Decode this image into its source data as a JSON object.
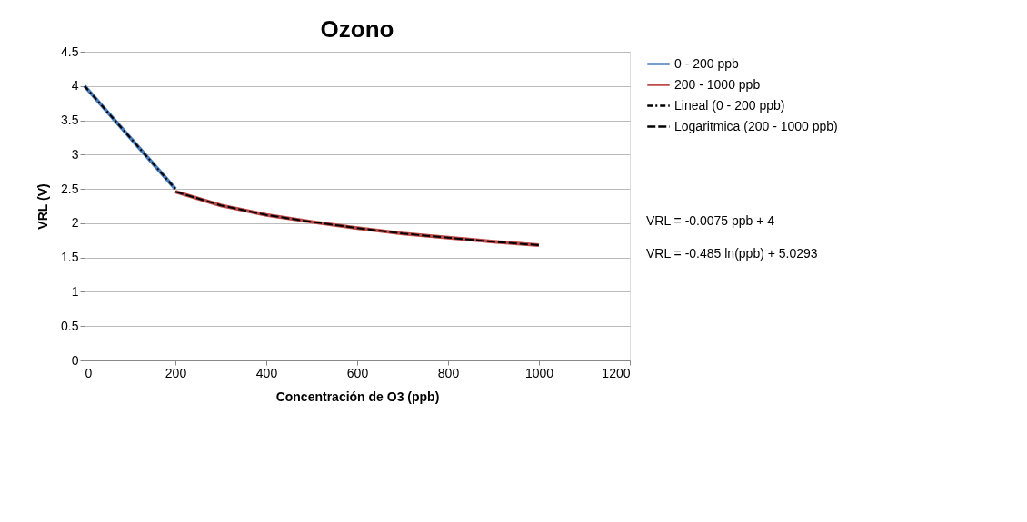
{
  "chart_data": {
    "type": "line",
    "title": "Ozono",
    "xlabel": "Concentración de O3 (ppb)",
    "ylabel": "VRL (V)",
    "xlim": [
      0,
      1200
    ],
    "xticks": [
      0,
      200,
      400,
      600,
      800,
      1000,
      1200
    ],
    "ylim": [
      0,
      4.5
    ],
    "yticks": [
      0,
      0.5,
      1,
      1.5,
      2,
      2.5,
      3,
      3.5,
      4,
      4.5
    ],
    "grid": "y",
    "legend": "right",
    "marker": "none",
    "series": [
      {
        "name": "0 - 200 ppb",
        "color": "#4a7ebb",
        "line_style": "solid",
        "x": [
          0,
          200
        ],
        "values": [
          4,
          2.5
        ]
      },
      {
        "name": "200 - 1000 ppb",
        "color": "#be4b48",
        "line_style": "solid",
        "x": [
          200,
          300,
          400,
          500,
          600,
          700,
          800,
          900,
          1000
        ],
        "values": [
          2.46,
          2.26,
          2.12,
          2.02,
          1.93,
          1.85,
          1.79,
          1.73,
          1.68
        ]
      },
      {
        "name": "Lineal (0 - 200 ppb)",
        "color": "#000000",
        "line_style": "dotted",
        "x": [
          0,
          200
        ],
        "values": [
          4,
          2.5
        ]
      },
      {
        "name": "Logaritmica (200 - 1000 ppb)",
        "color": "#000000",
        "line_style": "dashed",
        "x": [
          200,
          300,
          400,
          500,
          600,
          700,
          800,
          900,
          1000
        ],
        "values": [
          2.46,
          2.26,
          2.12,
          2.02,
          1.93,
          1.85,
          1.79,
          1.73,
          1.68
        ]
      }
    ],
    "annotations": [
      "VRL = -0.0075  ppb + 4",
      "VRL = -0.485 ln(ppb) + 5.0293"
    ]
  }
}
